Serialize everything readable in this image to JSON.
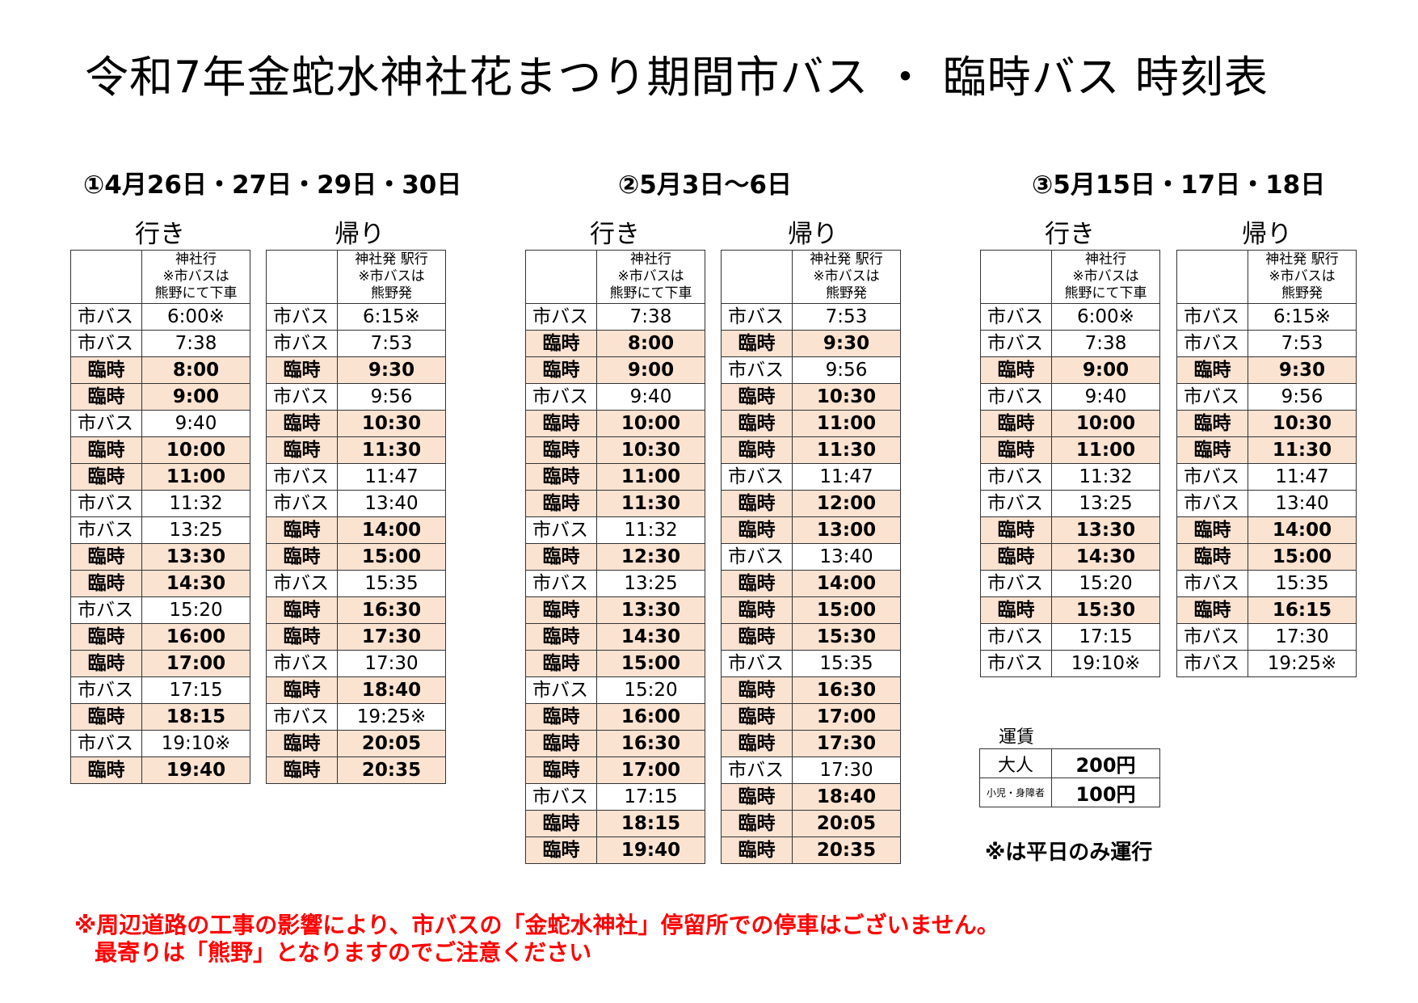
{
  "title": "令和7年金蛇水神社花まつり期間市バス ・ 臨時バス 時刻表",
  "header": {
    "outbound": "神社行\n※市バスは\n熊野にて下車",
    "return": "神社発 駅行\n※市バスは\n熊野発"
  },
  "labels": {
    "outbound": "行き",
    "return": "帰り"
  },
  "kinds": {
    "city": "市バス",
    "extra": "臨時"
  },
  "periods": [
    {
      "title": "①4月26日・27日・29日・30日",
      "outbound": [
        [
          "市バス",
          "6:00※"
        ],
        [
          "市バス",
          "7:38"
        ],
        [
          "臨時",
          "8:00"
        ],
        [
          "臨時",
          "9:00"
        ],
        [
          "市バス",
          "9:40"
        ],
        [
          "臨時",
          "10:00"
        ],
        [
          "臨時",
          "11:00"
        ],
        [
          "市バス",
          "11:32"
        ],
        [
          "市バス",
          "13:25"
        ],
        [
          "臨時",
          "13:30"
        ],
        [
          "臨時",
          "14:30"
        ],
        [
          "市バス",
          "15:20"
        ],
        [
          "臨時",
          "16:00"
        ],
        [
          "臨時",
          "17:00"
        ],
        [
          "市バス",
          "17:15"
        ],
        [
          "臨時",
          "18:15"
        ],
        [
          "市バス",
          "19:10※"
        ],
        [
          "臨時",
          "19:40"
        ]
      ],
      "return": [
        [
          "市バス",
          "6:15※"
        ],
        [
          "市バス",
          "7:53"
        ],
        [
          "臨時",
          "9:30"
        ],
        [
          "市バス",
          "9:56"
        ],
        [
          "臨時",
          "10:30"
        ],
        [
          "臨時",
          "11:30"
        ],
        [
          "市バス",
          "11:47"
        ],
        [
          "市バス",
          "13:40"
        ],
        [
          "臨時",
          "14:00"
        ],
        [
          "臨時",
          "15:00"
        ],
        [
          "市バス",
          "15:35"
        ],
        [
          "臨時",
          "16:30"
        ],
        [
          "臨時",
          "17:30"
        ],
        [
          "市バス",
          "17:30"
        ],
        [
          "臨時",
          "18:40"
        ],
        [
          "市バス",
          "19:25※"
        ],
        [
          "臨時",
          "20:05"
        ],
        [
          "臨時",
          "20:35"
        ]
      ]
    },
    {
      "title": "②5月3日～6日",
      "outbound": [
        [
          "市バス",
          "7:38"
        ],
        [
          "臨時",
          "8:00"
        ],
        [
          "臨時",
          "9:00"
        ],
        [
          "市バス",
          "9:40"
        ],
        [
          "臨時",
          "10:00"
        ],
        [
          "臨時",
          "10:30"
        ],
        [
          "臨時",
          "11:00"
        ],
        [
          "臨時",
          "11:30"
        ],
        [
          "市バス",
          "11:32"
        ],
        [
          "臨時",
          "12:30"
        ],
        [
          "市バス",
          "13:25"
        ],
        [
          "臨時",
          "13:30"
        ],
        [
          "臨時",
          "14:30"
        ],
        [
          "臨時",
          "15:00"
        ],
        [
          "市バス",
          "15:20"
        ],
        [
          "臨時",
          "16:00"
        ],
        [
          "臨時",
          "16:30"
        ],
        [
          "臨時",
          "17:00"
        ],
        [
          "市バス",
          "17:15"
        ],
        [
          "臨時",
          "18:15"
        ],
        [
          "臨時",
          "19:40"
        ]
      ],
      "return": [
        [
          "市バス",
          "7:53"
        ],
        [
          "臨時",
          "9:30"
        ],
        [
          "市バス",
          "9:56"
        ],
        [
          "臨時",
          "10:30"
        ],
        [
          "臨時",
          "11:00"
        ],
        [
          "臨時",
          "11:30"
        ],
        [
          "市バス",
          "11:47"
        ],
        [
          "臨時",
          "12:00"
        ],
        [
          "臨時",
          "13:00"
        ],
        [
          "市バス",
          "13:40"
        ],
        [
          "臨時",
          "14:00"
        ],
        [
          "臨時",
          "15:00"
        ],
        [
          "臨時",
          "15:30"
        ],
        [
          "市バス",
          "15:35"
        ],
        [
          "臨時",
          "16:30"
        ],
        [
          "臨時",
          "17:00"
        ],
        [
          "臨時",
          "17:30"
        ],
        [
          "市バス",
          "17:30"
        ],
        [
          "臨時",
          "18:40"
        ],
        [
          "臨時",
          "20:05"
        ],
        [
          "臨時",
          "20:35"
        ]
      ]
    },
    {
      "title": "③5月15日・17日・18日",
      "outbound": [
        [
          "市バス",
          "6:00※"
        ],
        [
          "市バス",
          "7:38"
        ],
        [
          "臨時",
          "9:00"
        ],
        [
          "市バス",
          "9:40"
        ],
        [
          "臨時",
          "10:00"
        ],
        [
          "臨時",
          "11:00"
        ],
        [
          "市バス",
          "11:32"
        ],
        [
          "市バス",
          "13:25"
        ],
        [
          "臨時",
          "13:30"
        ],
        [
          "臨時",
          "14:30"
        ],
        [
          "市バス",
          "15:20"
        ],
        [
          "臨時",
          "15:30"
        ],
        [
          "市バス",
          "17:15"
        ],
        [
          "市バス",
          "19:10※"
        ]
      ],
      "return": [
        [
          "市バス",
          "6:15※"
        ],
        [
          "市バス",
          "7:53"
        ],
        [
          "臨時",
          "9:30"
        ],
        [
          "市バス",
          "9:56"
        ],
        [
          "臨時",
          "10:30"
        ],
        [
          "臨時",
          "11:30"
        ],
        [
          "市バス",
          "11:47"
        ],
        [
          "市バス",
          "13:40"
        ],
        [
          "臨時",
          "14:00"
        ],
        [
          "臨時",
          "15:00"
        ],
        [
          "市バス",
          "15:35"
        ],
        [
          "臨時",
          "16:15"
        ],
        [
          "市バス",
          "17:30"
        ],
        [
          "市バス",
          "19:25※"
        ]
      ]
    }
  ],
  "fare": {
    "title": "運賃",
    "rows": [
      [
        "大人",
        "200円"
      ],
      [
        "小児・身障者",
        "100円"
      ]
    ]
  },
  "note": "※は平日のみ運行",
  "warning": [
    "※周辺道路の工事の影響により、市バスの「金蛇水神社」停留所での停車はございません。",
    "最寄りは「熊野」となりますのでご注意ください"
  ],
  "colors": {
    "extra_row_bg": "#fbe3d2",
    "warning": "#ff0000"
  }
}
